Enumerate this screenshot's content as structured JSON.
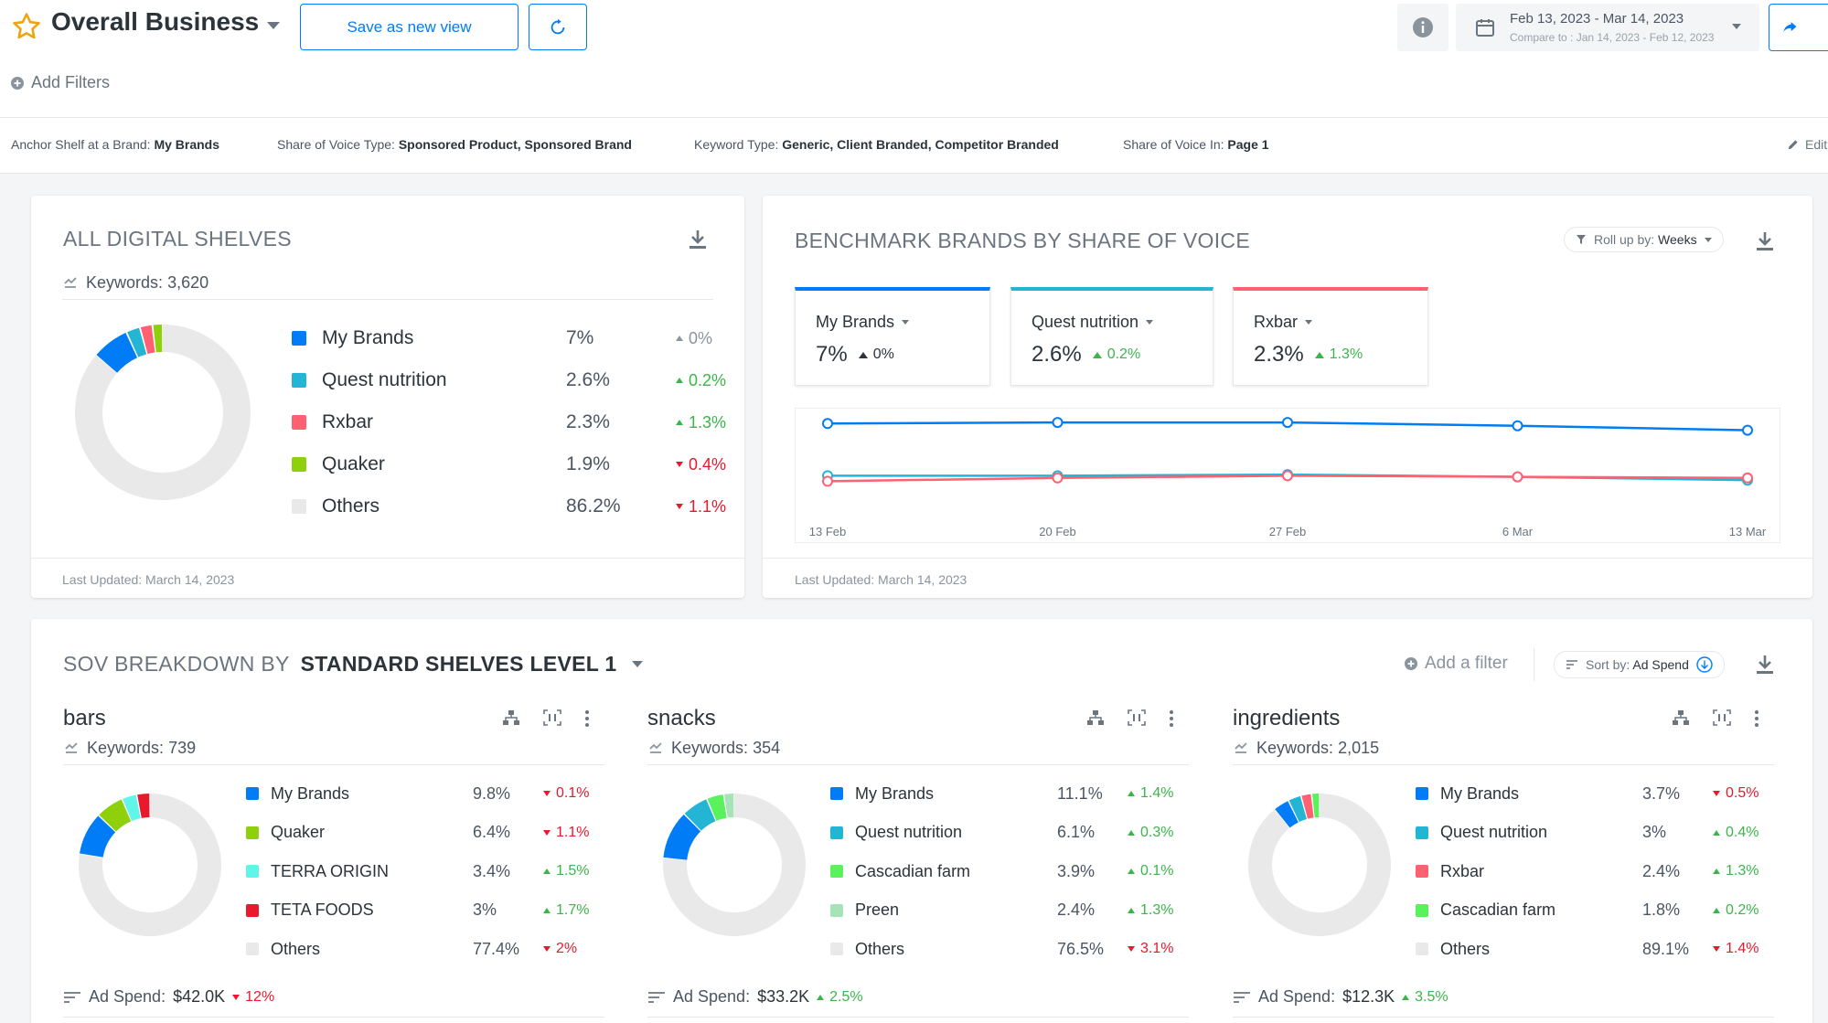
{
  "header": {
    "title": "Overall Business",
    "save_label": "Save as new view",
    "date_range": "Feb 13, 2023 - Mar 14, 2023",
    "compare_range": "Compare to : Jan 14, 2023 - Feb 12, 2023",
    "add_filters": "Add Filters"
  },
  "filters": [
    {
      "label": "Anchor Shelf at a Brand:",
      "value": "My Brands"
    },
    {
      "label": "Share of Voice Type:",
      "value": "Sponsored Product, Sponsored Brand"
    },
    {
      "label": "Keyword Type:",
      "value": "Generic, Client Branded, Competitor Branded"
    },
    {
      "label": "Share of Voice In:",
      "value": "Page 1"
    }
  ],
  "edit_label": "Edit",
  "colors": {
    "blue": "#007cf6",
    "teal": "#23b5d3",
    "red": "#ff6072",
    "green": "#8dd00b",
    "gray": "#e9e9e9",
    "up": "#3bb54a",
    "down": "#e8192c"
  },
  "all_shelves": {
    "title": "ALL DIGITAL SHELVES",
    "keywords_label": "Keywords:",
    "keywords": "3,620",
    "last_updated": "Last Updated: March 14, 2023",
    "legend": [
      {
        "name": "My Brands",
        "value": "7%",
        "change": "0%",
        "dir": "neutral",
        "color": "#007cf6"
      },
      {
        "name": "Quest nutrition",
        "value": "2.6%",
        "change": "0.2%",
        "dir": "up",
        "color": "#23b5d3"
      },
      {
        "name": "Rxbar",
        "value": "2.3%",
        "change": "1.3%",
        "dir": "up",
        "color": "#ff6072"
      },
      {
        "name": "Quaker",
        "value": "1.9%",
        "change": "0.4%",
        "dir": "down",
        "color": "#8dd00b"
      },
      {
        "name": "Others",
        "value": "86.2%",
        "change": "1.1%",
        "dir": "down",
        "color": "#e9e9e9"
      }
    ]
  },
  "benchmark": {
    "title": "BENCHMARK BRANDS BY SHARE OF VOICE",
    "rollup_label": "Roll up by:",
    "rollup_value": "Weeks",
    "last_updated": "Last Updated: March 14, 2023",
    "brands": [
      {
        "name": "My Brands",
        "value": "7%",
        "change": "0%",
        "dir": "neutral",
        "color": "#007cf6"
      },
      {
        "name": "Quest nutrition",
        "value": "2.6%",
        "change": "0.2%",
        "dir": "up",
        "color": "#23b5d3"
      },
      {
        "name": "Rxbar",
        "value": "2.3%",
        "change": "1.3%",
        "dir": "up",
        "color": "#ff6072"
      }
    ]
  },
  "chart_data": {
    "type": "line",
    "categories": [
      "13 Feb",
      "20 Feb",
      "27 Feb",
      "6 Mar",
      "13 Mar"
    ],
    "series": [
      {
        "name": "My Brands",
        "values": [
          7.4,
          7.5,
          7.5,
          7.2,
          6.8
        ],
        "color": "#007cf6"
      },
      {
        "name": "Quest nutrition",
        "values": [
          2.7,
          2.7,
          2.8,
          2.6,
          2.3
        ],
        "color": "#23b5d3"
      },
      {
        "name": "Rxbar",
        "values": [
          2.2,
          2.5,
          2.7,
          2.6,
          2.5
        ],
        "color": "#ff6072"
      }
    ],
    "ylim": [
      1,
      8
    ],
    "grid": false
  },
  "breakdown": {
    "title_prefix": "SOV BREAKDOWN BY",
    "title_dim": "STANDARD SHELVES LEVEL 1",
    "add_filter": "Add a filter",
    "sort_label": "Sort by:",
    "sort_value": "Ad Spend",
    "keywords_label": "Keywords:",
    "ad_spend_label": "Ad Spend:",
    "shelves": [
      {
        "name": "bars",
        "keywords": "739",
        "ad_spend": "$42.0K",
        "ad_change": "12%",
        "ad_dir": "down",
        "legend": [
          {
            "name": "My Brands",
            "value": "9.8%",
            "change": "0.1%",
            "dir": "down",
            "color": "#007cf6"
          },
          {
            "name": "Quaker",
            "value": "6.4%",
            "change": "1.1%",
            "dir": "down",
            "color": "#8dd00b"
          },
          {
            "name": "TERRA ORIGIN",
            "value": "3.4%",
            "change": "1.5%",
            "dir": "up",
            "color": "#5ff5e8"
          },
          {
            "name": "TETA FOODS",
            "value": "3%",
            "change": "1.7%",
            "dir": "up",
            "color": "#e8192c"
          },
          {
            "name": "Others",
            "value": "77.4%",
            "change": "2%",
            "dir": "down",
            "color": "#e9e9e9"
          }
        ]
      },
      {
        "name": "snacks",
        "keywords": "354",
        "ad_spend": "$33.2K",
        "ad_change": "2.5%",
        "ad_dir": "up",
        "legend": [
          {
            "name": "My Brands",
            "value": "11.1%",
            "change": "1.4%",
            "dir": "up",
            "color": "#007cf6"
          },
          {
            "name": "Quest nutrition",
            "value": "6.1%",
            "change": "0.3%",
            "dir": "up",
            "color": "#23b5d3"
          },
          {
            "name": "Cascadian farm",
            "value": "3.9%",
            "change": "0.1%",
            "dir": "up",
            "color": "#59f25c"
          },
          {
            "name": "Preen",
            "value": "2.4%",
            "change": "1.3%",
            "dir": "up",
            "color": "#a7e3b8"
          },
          {
            "name": "Others",
            "value": "76.5%",
            "change": "3.1%",
            "dir": "down",
            "color": "#e9e9e9"
          }
        ]
      },
      {
        "name": "ingredients",
        "keywords": "2,015",
        "ad_spend": "$12.3K",
        "ad_change": "3.5%",
        "ad_dir": "up",
        "legend": [
          {
            "name": "My Brands",
            "value": "3.7%",
            "change": "0.5%",
            "dir": "down",
            "color": "#007cf6"
          },
          {
            "name": "Quest nutrition",
            "value": "3%",
            "change": "0.4%",
            "dir": "up",
            "color": "#23b5d3"
          },
          {
            "name": "Rxbar",
            "value": "2.4%",
            "change": "1.3%",
            "dir": "up",
            "color": "#ff6072"
          },
          {
            "name": "Cascadian farm",
            "value": "1.8%",
            "change": "0.2%",
            "dir": "up",
            "color": "#59f25c"
          },
          {
            "name": "Others",
            "value": "89.1%",
            "change": "1.4%",
            "dir": "down",
            "color": "#e9e9e9"
          }
        ]
      }
    ]
  }
}
